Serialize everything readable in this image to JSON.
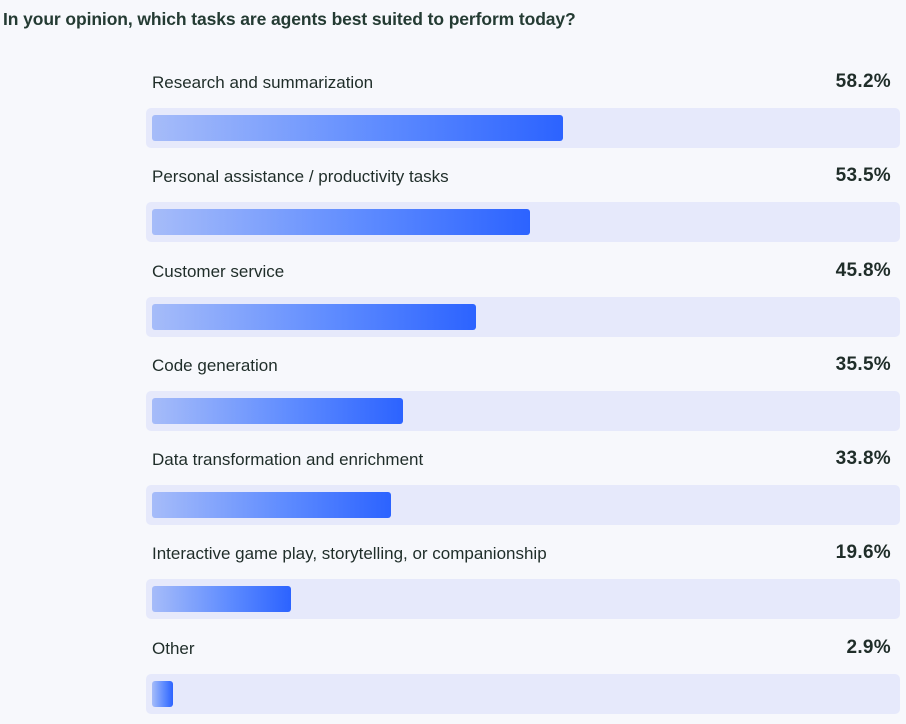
{
  "chart_data": {
    "type": "bar",
    "orientation": "horizontal",
    "title": "In your opinion, which tasks are agents best suited to perform today?",
    "categories": [
      "Research and summarization",
      "Personal assistance / productivity tasks",
      "Customer service",
      "Code generation",
      "Data transformation and enrichment",
      "Interactive game play, storytelling, or companionship",
      "Other"
    ],
    "values": [
      58.2,
      53.5,
      45.8,
      35.5,
      33.8,
      19.6,
      2.9
    ],
    "value_labels": [
      "58.2%",
      "53.5%",
      "45.8%",
      "35.5%",
      "33.8%",
      "19.6%",
      "2.9%"
    ],
    "xlim": [
      0,
      100
    ],
    "grid": false,
    "colors": {
      "track": "#e6e9fb",
      "bar_start": "#a6bcf9",
      "bar_end": "#2c63ff",
      "text": "#1f2d29"
    }
  }
}
